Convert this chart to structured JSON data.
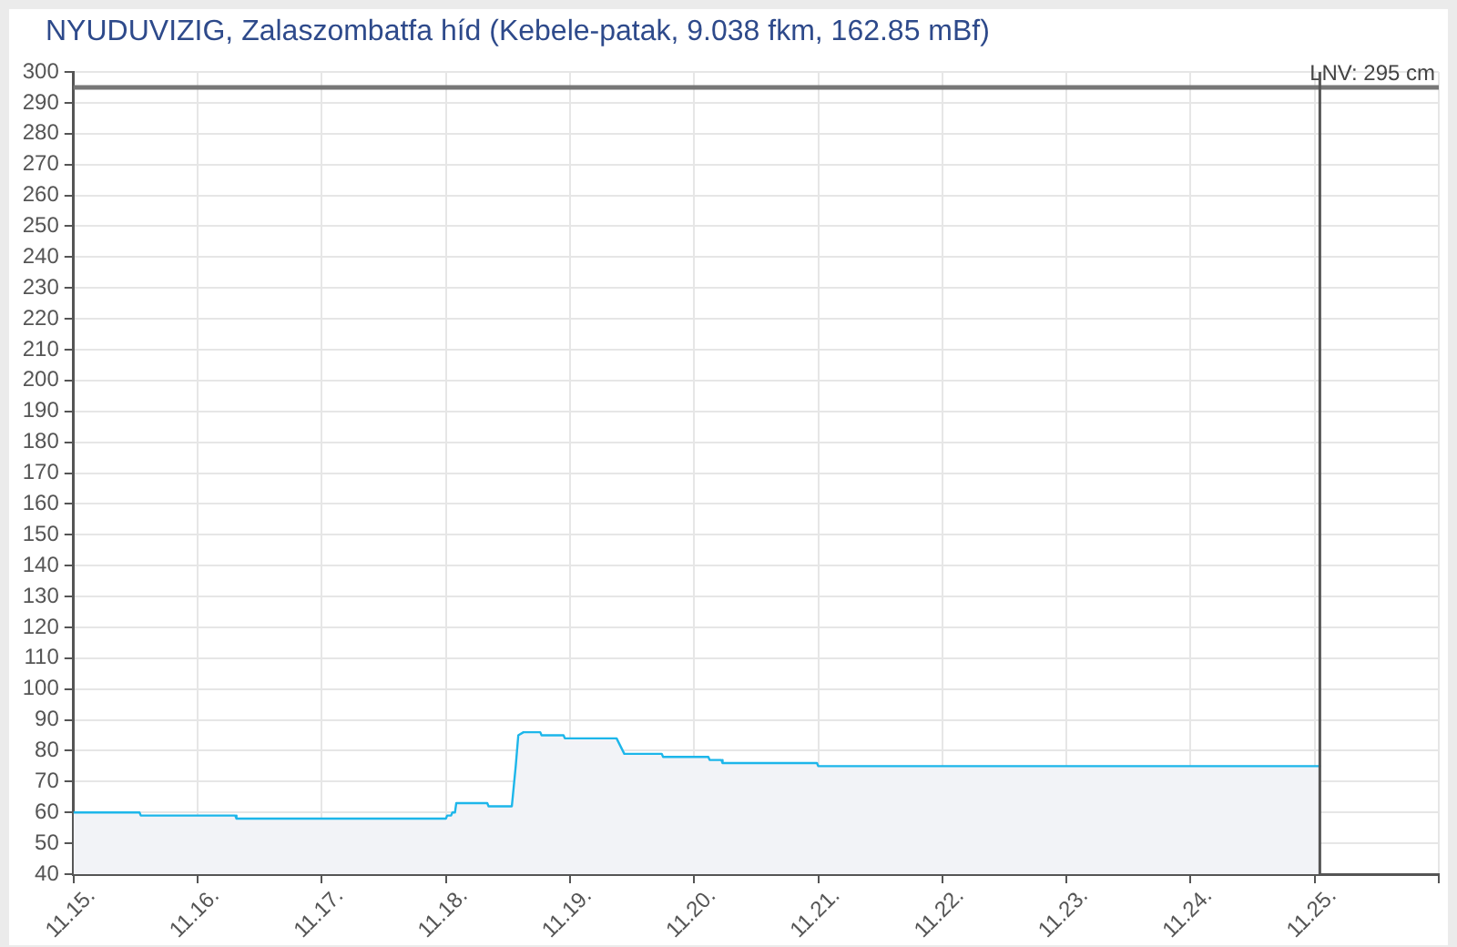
{
  "chart_data": {
    "type": "area",
    "title": "NYUDUVIZIG, Zalaszombatfa híd (Kebele-patak, 9.038 fkm, 162.85 mBf)",
    "x": [
      "--11-15T00:00",
      "--11-15T12:45",
      "--11-15T13:00",
      "--11-16T07:15",
      "--11-16T07:30",
      "--11-18T00:00",
      "--11-18T00:15",
      "--11-18T01:00",
      "--11-18T01:15",
      "--11-18T01:45",
      "--11-18T02:00",
      "--11-18T08:00",
      "--11-18T08:15",
      "--11-18T12:45",
      "--11-18T13:30",
      "--11-18T14:00",
      "--11-18T15:00",
      "--11-18T18:15",
      "--11-18T18:30",
      "--11-18T22:45",
      "--11-18T23:00",
      "--11-19T09:00",
      "--11-19T10:30",
      "--11-19T17:45",
      "--11-19T18:00",
      "--11-20T02:45",
      "--11-20T03:00",
      "--11-20T05:15",
      "--11-20T05:30",
      "--11-20T23:45",
      "--11-21T00:00",
      "--11-25T01:00"
    ],
    "values": [
      60,
      60,
      59,
      59,
      58,
      58,
      59,
      59,
      60,
      60,
      63,
      63,
      62,
      62,
      75,
      85,
      86,
      86,
      85,
      85,
      84,
      84,
      79,
      79,
      78,
      78,
      77,
      77,
      76,
      76,
      75,
      75
    ],
    "color": "#1db6ea",
    "xlim": [
      "--11-15",
      "--11-26"
    ],
    "xticks": [
      {
        "value": "--11-15",
        "label": "11.15."
      },
      {
        "value": "--11-16",
        "label": "11.16."
      },
      {
        "value": "--11-17",
        "label": "11.17."
      },
      {
        "value": "--11-18",
        "label": "11.18."
      },
      {
        "value": "--11-19",
        "label": "11.19."
      },
      {
        "value": "--11-20",
        "label": "11.20."
      },
      {
        "value": "--11-21",
        "label": "11.21."
      },
      {
        "value": "--11-22",
        "label": "11.22."
      },
      {
        "value": "--11-23",
        "label": "11.23."
      },
      {
        "value": "--11-24",
        "label": "11.24."
      },
      {
        "value": "--11-25",
        "label": "11.25."
      },
      {
        "value": "--11-26",
        "label": null
      }
    ],
    "ylim": [
      40,
      300
    ],
    "yticks": [
      40,
      50,
      60,
      70,
      80,
      90,
      100,
      110,
      120,
      130,
      140,
      150,
      160,
      170,
      180,
      190,
      200,
      210,
      220,
      230,
      240,
      250,
      260,
      270,
      280,
      290,
      300
    ],
    "grid": true,
    "ref_lines": [
      {
        "axis": "y",
        "value": 295,
        "label": "LNV: 295 cm",
        "color": "#777777"
      },
      {
        "axis": "x",
        "value": "--11-25T01:00",
        "color": "#555555"
      }
    ]
  }
}
